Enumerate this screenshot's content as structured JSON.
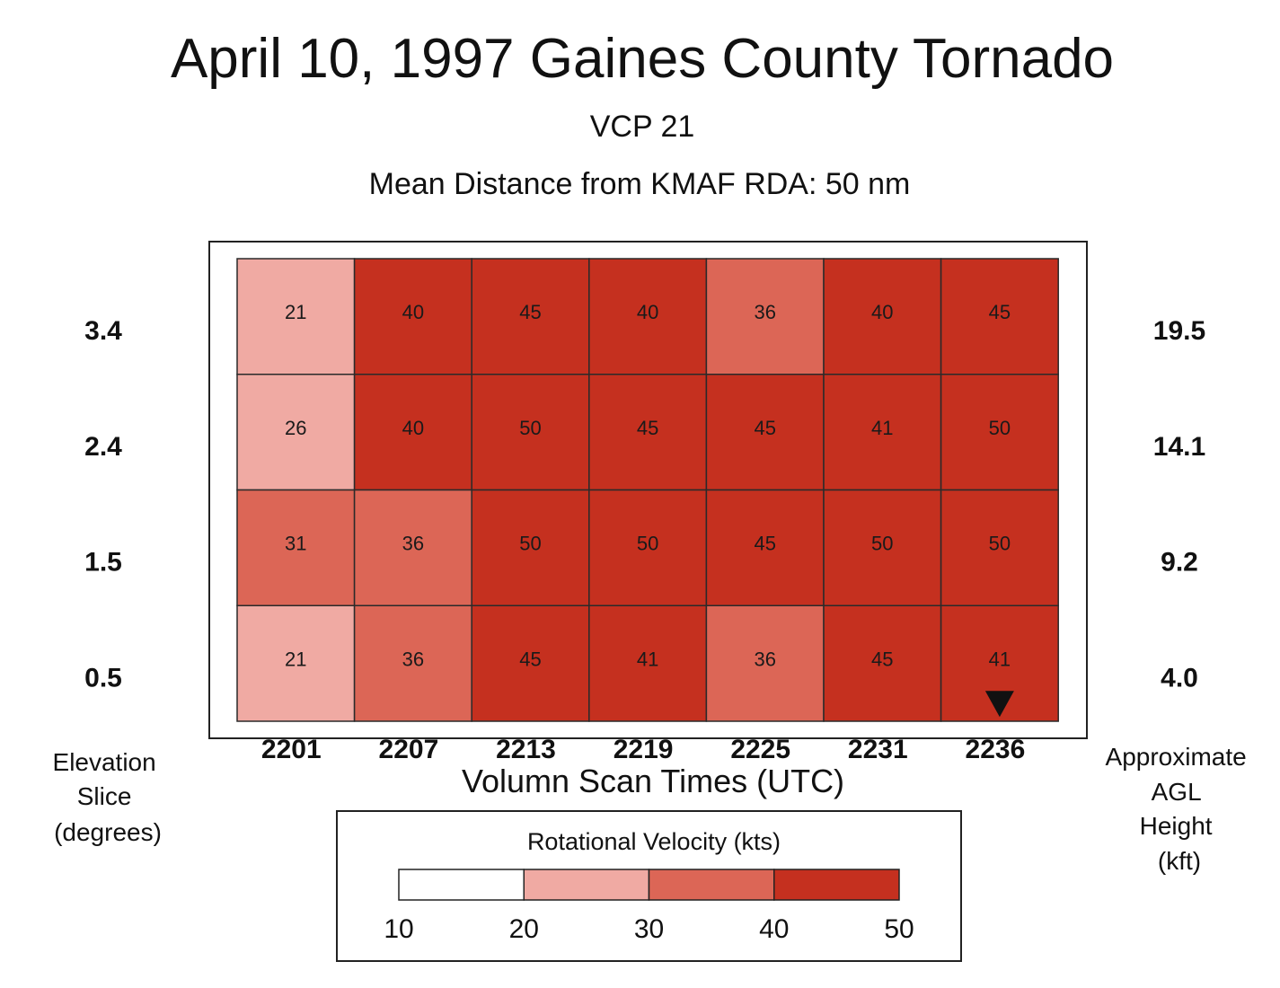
{
  "chart_data": {
    "type": "heatmap",
    "title": "April 10, 1997 Gaines County Tornado",
    "subtitle_lines": [
      "VCP 21",
      "Mean Distance from KMAF RDA:  50 nm"
    ],
    "xlabel": "Volumn Scan Times (UTC)",
    "x": [
      "2201",
      "2207",
      "2213",
      "2219",
      "2225",
      "2231",
      "2236"
    ],
    "y_left": [
      "3.4",
      "2.4",
      "1.5",
      "0.5"
    ],
    "y_right": [
      "19.5",
      "14.1",
      "9.2",
      "4.0"
    ],
    "ylabel_left": [
      "Elevation",
      "Slice",
      "(degrees)"
    ],
    "ylabel_right": [
      "Approximate",
      "AGL",
      "Height",
      "(kft)"
    ],
    "values": [
      [
        21,
        40,
        45,
        40,
        36,
        40,
        45
      ],
      [
        26,
        40,
        50,
        45,
        45,
        41,
        50
      ],
      [
        31,
        36,
        50,
        50,
        45,
        50,
        50
      ],
      [
        21,
        36,
        45,
        41,
        36,
        45,
        41
      ]
    ],
    "marker": {
      "row": 3,
      "col": 6,
      "symbol": "▼"
    },
    "legend": {
      "title": "Rotational Velocity (kts)",
      "ticks": [
        "10",
        "20",
        "30",
        "40",
        "50"
      ],
      "bins": [
        {
          "min": 10,
          "max": 20,
          "color": "#ffffff"
        },
        {
          "min": 20,
          "max": 30,
          "color": "#f0aaa3"
        },
        {
          "min": 30,
          "max": 40,
          "color": "#dc6656"
        },
        {
          "min": 40,
          "max": 50,
          "color": "#c5301f"
        }
      ]
    }
  }
}
